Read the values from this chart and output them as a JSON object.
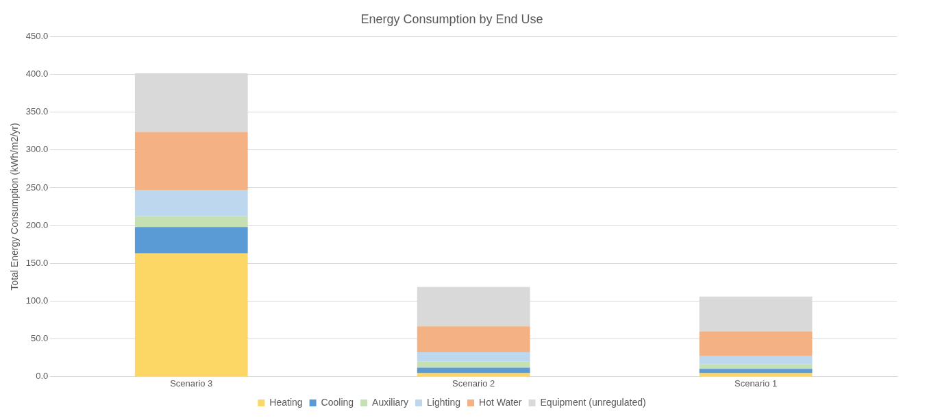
{
  "chart_data": {
    "type": "bar",
    "title": "Energy Consumption by End Use",
    "ylabel": "Total Energy Consumption (kWh/m2/yr)",
    "stacked": true,
    "categories": [
      "Scenario 3",
      "Scenario 2",
      "Scenario 1"
    ],
    "series": [
      {
        "name": "Heating",
        "color": "#fdd766",
        "values": [
          163,
          4.4,
          4.5
        ]
      },
      {
        "name": "Cooling",
        "color": "#5b9bd5",
        "values": [
          35,
          7.2,
          5.6
        ]
      },
      {
        "name": "Auxiliary",
        "color": "#c5e0b3",
        "values": [
          14.5,
          8,
          6
        ]
      },
      {
        "name": "Lighting",
        "color": "#bdd7ee",
        "values": [
          34,
          12.5,
          10.7
        ]
      },
      {
        "name": "Hot Water",
        "color": "#f4b183",
        "values": [
          77.5,
          34.4,
          33.1
        ]
      },
      {
        "name": "Equipment (unregulated)",
        "color": "#d9d9d9",
        "values": [
          77.5,
          52,
          46
        ]
      }
    ],
    "ylim": [
      0,
      450
    ],
    "yticks": [
      {
        "value": 0,
        "label": "0.0"
      },
      {
        "value": 50,
        "label": "50.0"
      },
      {
        "value": 100,
        "label": "100.0"
      },
      {
        "value": 150,
        "label": "150.0"
      },
      {
        "value": 200,
        "label": "200.0"
      },
      {
        "value": 250,
        "label": "250.0"
      },
      {
        "value": 300,
        "label": "300.0"
      },
      {
        "value": 350,
        "label": "350.0"
      },
      {
        "value": 400,
        "label": "400.0"
      },
      {
        "value": 450,
        "label": "450.0"
      }
    ],
    "grid": "y",
    "legend": "bottom"
  }
}
